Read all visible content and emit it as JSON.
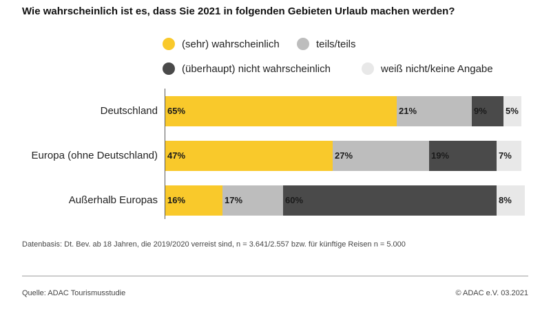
{
  "title": "Wie wahrscheinlich ist es, dass Sie 2021 in folgenden Gebieten Urlaub machen werden?",
  "colors": {
    "wahrscheinlich": "#f9c92b",
    "teils": "#bdbdbd",
    "nicht": "#4a4a4a",
    "keine_angabe": "#e8e8e8"
  },
  "legend": [
    {
      "label": "(sehr) wahrscheinlich",
      "color_key": "wahrscheinlich"
    },
    {
      "label": "teils/teils",
      "color_key": "teils"
    },
    {
      "label": "(überhaupt) nicht wahrscheinlich",
      "color_key": "nicht"
    },
    {
      "label": "weiß nicht/keine Angabe",
      "color_key": "keine_angabe"
    }
  ],
  "chart_data": {
    "type": "bar",
    "orientation": "horizontal",
    "stacked": true,
    "title": "Wie wahrscheinlich ist es, dass Sie 2021 in folgenden Gebieten Urlaub machen werden?",
    "categories": [
      "Deutschland",
      "Europa (ohne Deutschland)",
      "Außerhalb Europas"
    ],
    "series": [
      {
        "name": "(sehr) wahrscheinlich",
        "color_key": "wahrscheinlich",
        "values": [
          65,
          47,
          16
        ],
        "labels": [
          "65%",
          "47%",
          "16%"
        ]
      },
      {
        "name": "teils/teils",
        "color_key": "teils",
        "values": [
          21,
          27,
          17
        ],
        "labels": [
          "21%",
          "27%",
          "17%"
        ]
      },
      {
        "name": "(überhaupt) nicht wahrscheinlich",
        "color_key": "nicht",
        "values": [
          9,
          19,
          60
        ],
        "labels": [
          "9%",
          "19%",
          "60%"
        ]
      },
      {
        "name": "weiß nicht/keine Angabe",
        "color_key": "keine_angabe",
        "values": [
          5,
          7,
          8
        ],
        "labels": [
          "5%",
          "7%",
          "8%"
        ]
      }
    ],
    "xlim": [
      0,
      100
    ],
    "legend_position": "top",
    "grid": false
  },
  "footnote": "Datenbasis: Dt. Bev. ab 18 Jahren, die 2019/2020 verreist sind, n = 3.641/2.557 bzw. für künftige Reisen n = 5.000",
  "source": "Quelle: ADAC Tourismusstudie",
  "copyright": "© ADAC e.V. 03.2021"
}
